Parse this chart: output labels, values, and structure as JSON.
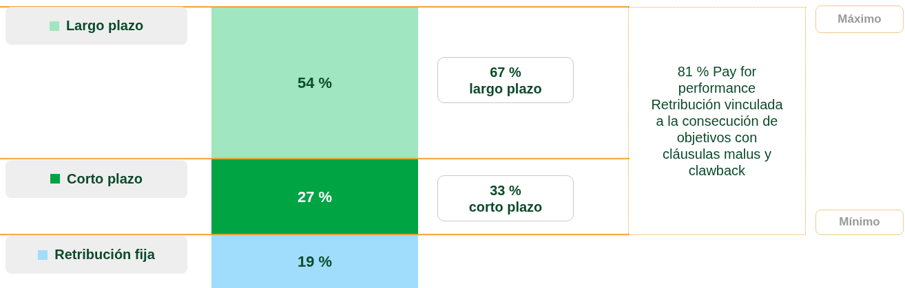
{
  "chart_data": {
    "type": "bar",
    "stacked": true,
    "categories": [
      null
    ],
    "series": [
      {
        "name": "Retribución fija",
        "color": "#a0dcfc",
        "values": [
          19
        ],
        "value_labels": [
          "19 %"
        ]
      },
      {
        "name": "Corto plazo",
        "color": "#00a443",
        "values": [
          27
        ],
        "value_labels": [
          "27 %"
        ]
      },
      {
        "name": "Largo plazo",
        "color": "#a0e6c0",
        "values": [
          54
        ],
        "value_labels": [
          "54 %"
        ]
      }
    ],
    "legend": "left",
    "tick_labels": false,
    "ref_lines": [
      {
        "axis": "y",
        "value": 100,
        "color": "#f5a033"
      },
      {
        "axis": "y",
        "value": 46,
        "color": "#f5a033"
      },
      {
        "axis": "y",
        "value": 19,
        "color": "#f5a033"
      }
    ],
    "annotations": [
      "67 %\nlargo plazo",
      "33 %\ncorto plazo",
      "81 % Pay for performance Retribución vinculada a la consecución de objetivos con cláusulas malus y clawback",
      "Máximo",
      "Mínimo"
    ]
  }
}
